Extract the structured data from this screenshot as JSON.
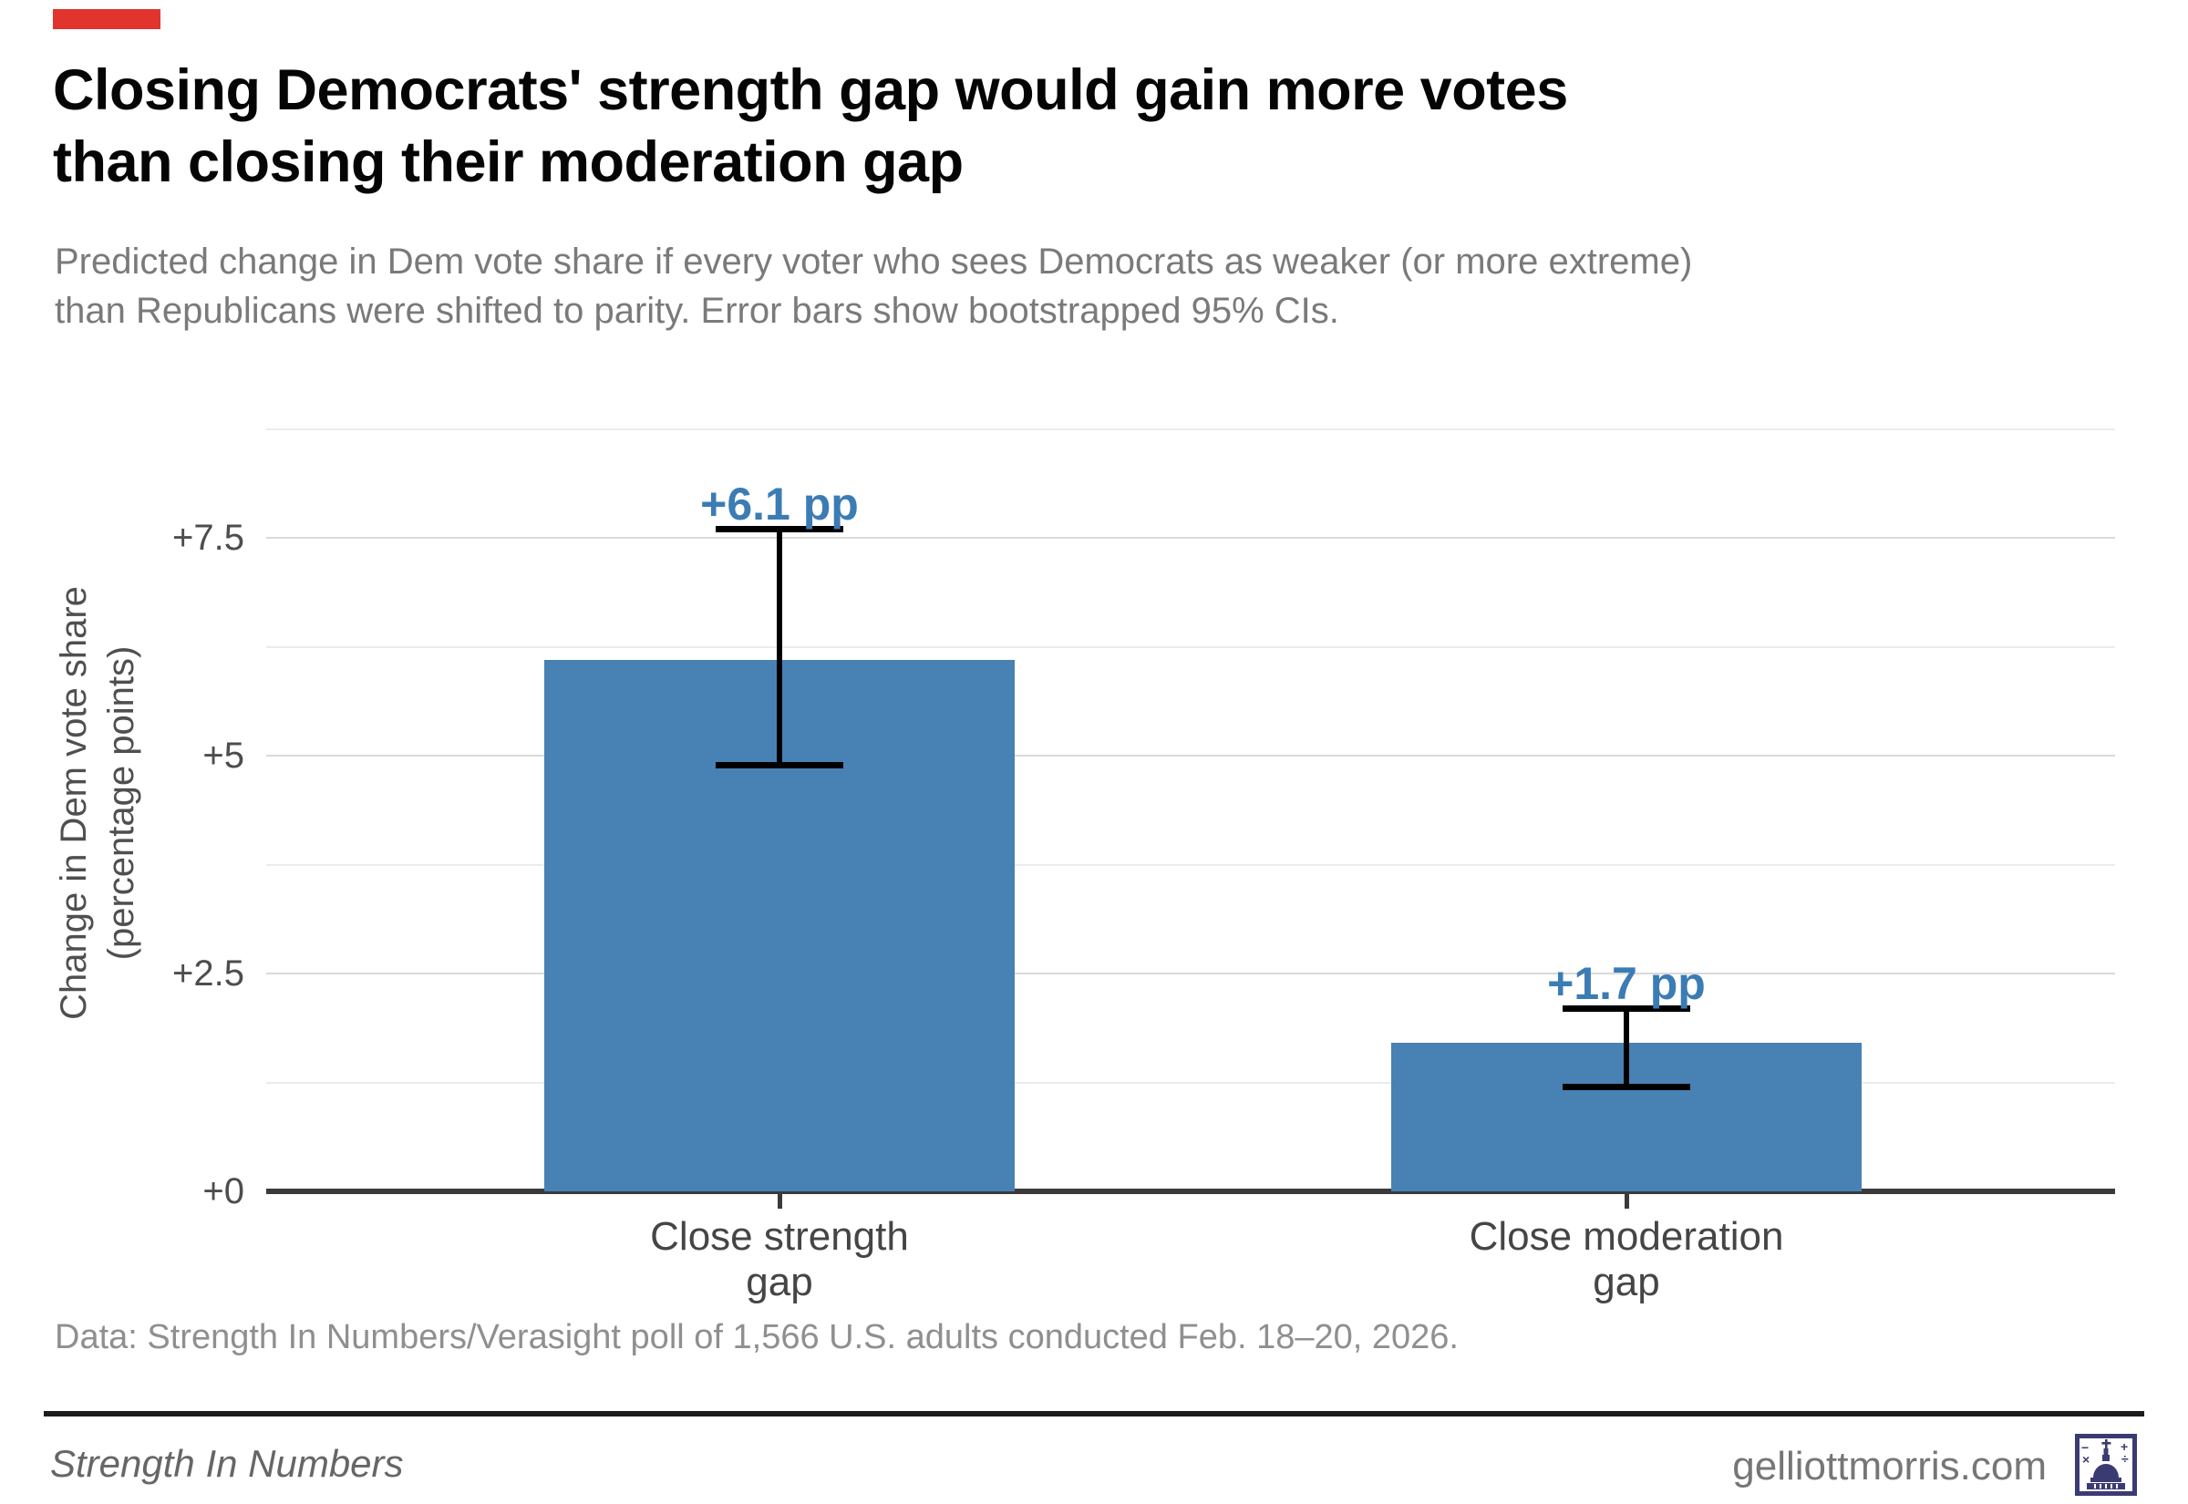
{
  "colors": {
    "accent_red": "#e0342c",
    "bar_blue": "#4881b4",
    "value_label_blue": "#3c7cb5",
    "logo_navy": "#3b3b74"
  },
  "header": {
    "title_lines": [
      "Closing Democrats' strength gap would gain more votes",
      "than closing their moderation gap"
    ],
    "subtitle_lines": [
      "Predicted change in Dem vote share if every voter who sees Democrats as weaker (or more extreme)",
      "than Republicans were shifted to parity. Error bars show bootstrapped 95% CIs."
    ]
  },
  "chart_data": {
    "type": "bar",
    "title": "Closing Democrats' strength gap would gain more votes than closing their moderation gap",
    "subtitle": "Predicted change in Dem vote share if every voter who sees Democrats as weaker (or more extreme) than Republicans were shifted to parity. Error bars show bootstrapped 95% CIs.",
    "categories": [
      "Close strength gap",
      "Close moderation gap"
    ],
    "category_lines": [
      [
        "Close strength",
        "gap"
      ],
      [
        "Close moderation",
        "gap"
      ]
    ],
    "values": [
      6.1,
      1.7
    ],
    "value_labels": [
      "+6.1 pp",
      "+1.7 pp"
    ],
    "error_bars_95ci": [
      [
        4.9,
        7.6
      ],
      [
        1.2,
        2.1
      ]
    ],
    "xlabel": "",
    "ylabel": "Change in Dem vote share (percentage points)",
    "ylabel_lines": [
      "Change in Dem vote share",
      "(percentage points)"
    ],
    "yticks": [
      {
        "value": 7.5,
        "label": "+7.5"
      },
      {
        "value": 5,
        "label": "+5"
      },
      {
        "value": 2.5,
        "label": "+2.5"
      },
      {
        "value": 0,
        "label": "+0"
      }
    ],
    "minor_gridline_values": [
      8.75,
      6.25,
      3.75,
      1.25
    ],
    "ylim": [
      0,
      8.75
    ],
    "grid": true,
    "legend": "none",
    "bar_color": "#4881b4"
  },
  "footer": {
    "data_note": "Data: Strength In Numbers/Verasight poll of 1,566 U.S. adults conducted Feb. 18–20, 2026.",
    "brand": "Strength In Numbers",
    "site": "gelliottmorris.com"
  },
  "icons": {
    "logo": "capitol-dome-icon"
  }
}
